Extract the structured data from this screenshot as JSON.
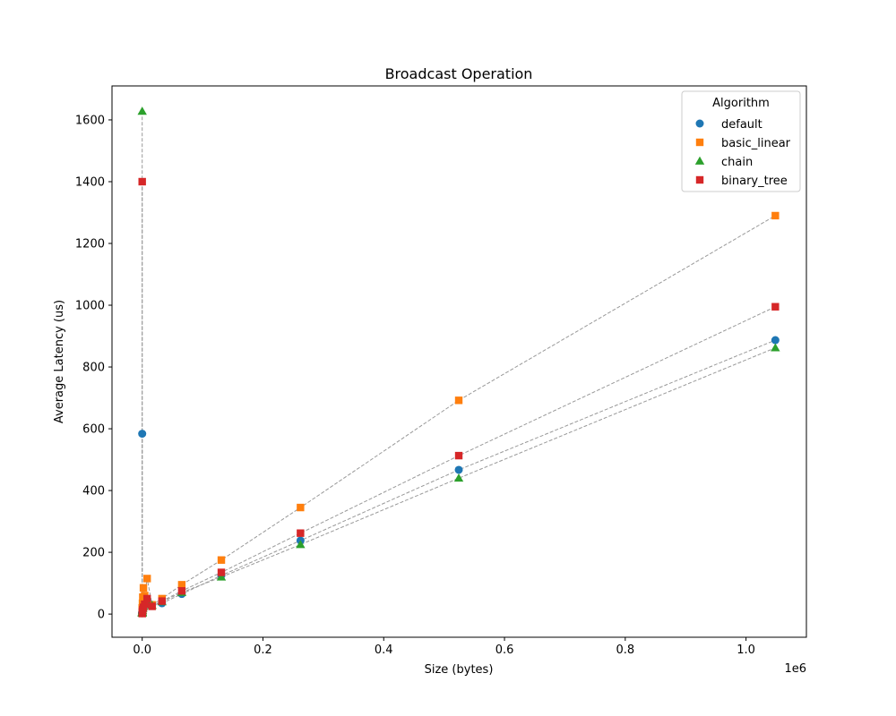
{
  "chart_data": {
    "type": "scatter",
    "title": "Broadcast Operation",
    "xlabel": "Size (bytes)",
    "ylabel": "Average Latency (us)",
    "x_offset_label": "1e6",
    "xlim": [
      -0.05,
      1.1
    ],
    "ylim": [
      -75,
      1710
    ],
    "x_scale_factor": 1000000,
    "xticks": [
      0.0,
      0.2,
      0.4,
      0.6,
      0.8,
      1.0
    ],
    "xtick_labels": [
      "0.0",
      "0.2",
      "0.4",
      "0.6",
      "0.8",
      "1.0"
    ],
    "yticks": [
      0,
      200,
      400,
      600,
      800,
      1000,
      1200,
      1400,
      1600
    ],
    "ytick_labels": [
      "0",
      "200",
      "400",
      "600",
      "800",
      "1000",
      "1200",
      "1400",
      "1600"
    ],
    "grid": false,
    "connector_color": "#999999",
    "legend": {
      "title": "Algorithm",
      "placement": "top-right"
    },
    "x": [
      1,
      2,
      4,
      8,
      16,
      32,
      64,
      128,
      256,
      512,
      1024,
      2048,
      4096,
      8192,
      16384,
      32768,
      65536,
      131072,
      262144,
      524288,
      1048576
    ],
    "series": [
      {
        "name": "default",
        "marker": "circle",
        "color": "#1f77b4",
        "values": [
          584,
          3,
          3,
          3,
          3,
          4,
          4,
          5,
          6,
          8,
          12,
          18,
          28,
          45,
          30,
          35,
          65,
          125,
          238,
          467,
          887
        ]
      },
      {
        "name": "basic_linear",
        "marker": "square",
        "color": "#ff7f0e",
        "values": [
          20,
          3,
          4,
          4,
          5,
          6,
          8,
          12,
          20,
          35,
          55,
          85,
          60,
          115,
          30,
          50,
          95,
          175,
          345,
          692,
          1290
        ]
      },
      {
        "name": "chain",
        "marker": "triangle",
        "color": "#2ca02c",
        "values": [
          1628,
          3,
          3,
          3,
          4,
          4,
          5,
          6,
          8,
          12,
          18,
          25,
          35,
          40,
          28,
          40,
          70,
          120,
          225,
          440,
          862
        ]
      },
      {
        "name": "binary_tree",
        "marker": "square",
        "color": "#d62728",
        "values": [
          1400,
          2,
          2,
          3,
          3,
          4,
          4,
          5,
          7,
          10,
          15,
          22,
          32,
          50,
          25,
          42,
          75,
          135,
          262,
          513,
          995
        ]
      }
    ]
  }
}
